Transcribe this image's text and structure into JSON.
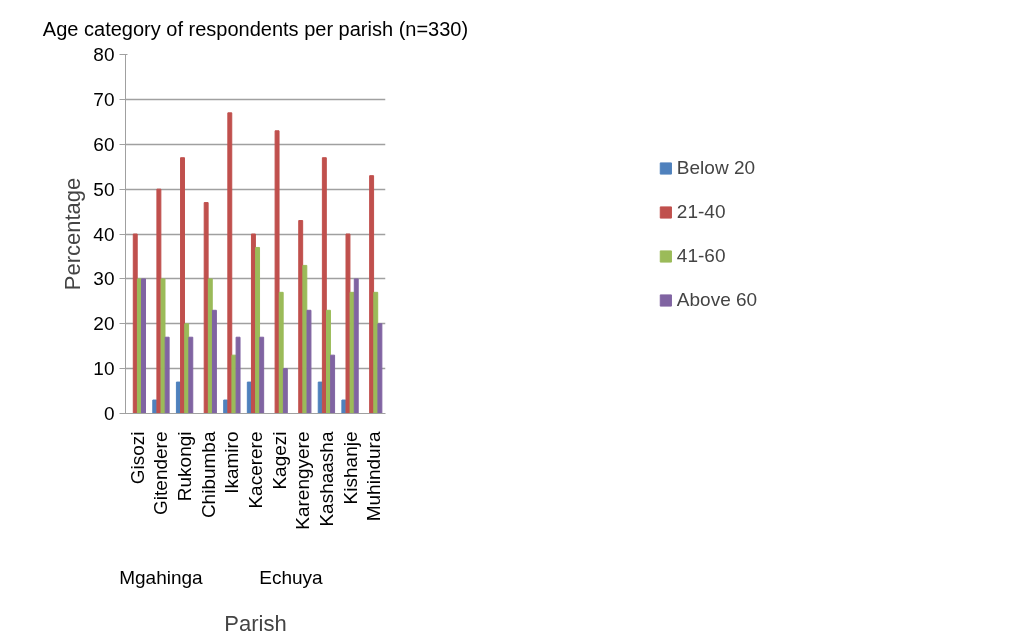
{
  "chart_data": {
    "type": "bar",
    "title": "Age category of respondents per parish (n=330)",
    "xlabel": "Parish",
    "ylabel": "Percentage",
    "categories": [
      "Gisozi",
      "Gitendere",
      "Rukongi",
      "Chibumba",
      "Ikamiro",
      "Kacerere",
      "Kagezi",
      "Karengyere",
      "Kashaasha",
      "Kishanje",
      "Muhindura"
    ],
    "annotations": [
      "Mgahinga",
      "Echuya"
    ],
    "series": [
      {
        "name": "Below 20",
        "color": "#4f81bd",
        "values": [
          0,
          3,
          7,
          0,
          3,
          7,
          0,
          0,
          7,
          3,
          0
        ]
      },
      {
        "name": "21-40",
        "color": "#c0504d",
        "values": [
          40,
          50,
          57,
          47,
          67,
          40,
          63,
          43,
          57,
          40,
          53
        ]
      },
      {
        "name": "41-60",
        "color": "#9bbb59",
        "values": [
          30,
          30,
          20,
          30,
          13,
          37,
          27,
          33,
          23,
          27,
          27
        ]
      },
      {
        "name": "Above 60",
        "color": "#8064a2",
        "values": [
          30,
          17,
          17,
          23,
          17,
          17,
          10,
          23,
          13,
          30,
          20
        ]
      }
    ],
    "ylim": [
      0,
      80
    ],
    "yticks": [
      0,
      10,
      20,
      30,
      40,
      50,
      60,
      70,
      80
    ],
    "grid": "y",
    "legend": "right"
  }
}
